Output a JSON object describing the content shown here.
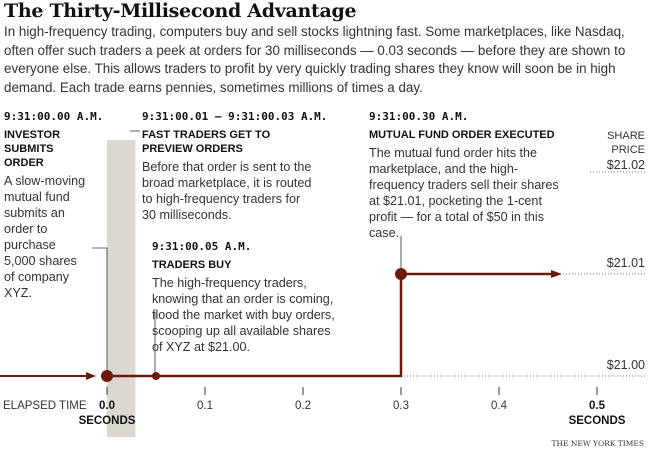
{
  "title": "The Thirty-Millisecond Advantage",
  "intro": "In high-frequency trading, computers buy and sell stocks lightning fast. Some marketplaces, like Nasdaq, often offer such traders a peek at orders for 30 milliseconds — 0.03 seconds — before they are shown to everyone else. This allows traders to profit by very quickly trading shares they know will soon be in high demand. Each trade earns pennies, sometimes millions of times a day.",
  "annotations": [
    {
      "time": "9:31:00.00 A.M.",
      "heading": "INVESTOR SUBMITS ORDER",
      "body": "A slow-moving mutual fund submits an order to purchase 5,000 shares of company XYZ."
    },
    {
      "time": "9:31:00.01 – 9:31:00.03 A.M.",
      "heading": "FAST TRADERS GET TO PREVIEW ORDERS",
      "body": "Before that order is sent to the broad marketplace, it is routed to high-frequency traders for 30 milliseconds."
    },
    {
      "time": "9:31:00.05 A.M.",
      "heading": "TRADERS BUY",
      "body": "The high-frequency traders, knowing that an order is coming, flood the market with buy orders, scooping up all available shares of XYZ at $21.00."
    },
    {
      "time": "9:31:00.30 A.M.",
      "heading": "MUTUAL FUND ORDER EXECUTED",
      "body": "The mutual fund order hits the marketplace, and the high-frequency traders sell their shares at $21.01, pocketing the 1-cent profit — for a total of $50 in this case."
    }
  ],
  "credit": "THE NEW YORK TIMES",
  "chart_data": {
    "type": "line",
    "step": true,
    "xlabel": "ELAPSED TIME",
    "x_unit_label": "SECONDS",
    "ylabel": "SHARE PRICE",
    "x_ticks": [
      "0.0",
      "0.1",
      "0.2",
      "0.3",
      "0.4",
      "0.5"
    ],
    "y_ticks": [
      "$21.02",
      "$21.01",
      "$21.00"
    ],
    "xlim": [
      0,
      0.5
    ],
    "ylim": [
      21.0,
      21.02
    ],
    "preview_window": [
      0,
      0.03
    ],
    "points": [
      {
        "x": 0,
        "y": 21.0
      },
      {
        "x": 0.05,
        "y": 21.0
      },
      {
        "x": 0.3,
        "y": 21.0
      },
      {
        "x": 0.3,
        "y": 21.01
      }
    ],
    "line_color": "#6b1a0a",
    "band_color": "#dcd8d0"
  }
}
